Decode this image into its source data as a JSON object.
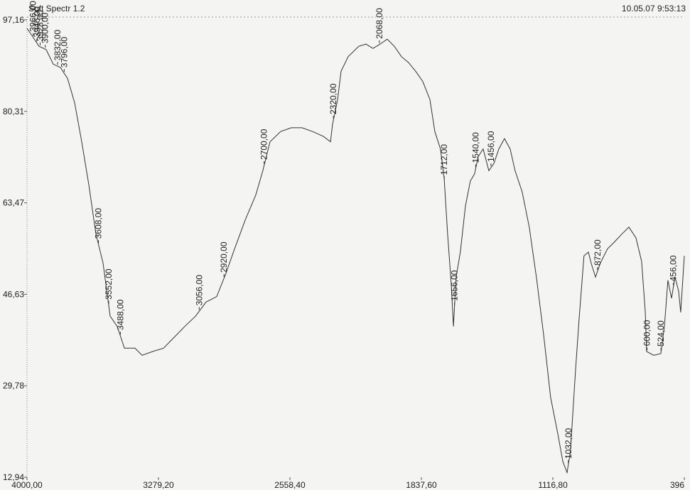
{
  "chart_data": {
    "type": "line",
    "title": "Soft Spectr 1.2",
    "subtitle": "10.05.07  9:53:13",
    "xlim": [
      4000,
      396
    ],
    "ylim": [
      12.94,
      97.16
    ],
    "xticks": [
      {
        "value": 4000,
        "label": "4000,00"
      },
      {
        "value": 3279.2,
        "label": "3279,20"
      },
      {
        "value": 2558.4,
        "label": "2558,40"
      },
      {
        "value": 1837.6,
        "label": "1837,60"
      },
      {
        "value": 1116.8,
        "label": "1116,80"
      },
      396
    ],
    "yticks": [
      {
        "value": 97.16,
        "label": "97,16"
      },
      {
        "value": 80.31,
        "label": "80,31"
      },
      {
        "value": 63.47,
        "label": "63,47"
      },
      {
        "value": 46.63,
        "label": "46,63"
      },
      {
        "value": 29.78,
        "label": "29,78"
      },
      {
        "value": 12.94,
        "label": "12,94"
      }
    ],
    "series": [
      {
        "color": "#333333",
        "x": [
          4000,
          3973,
          3934,
          3895,
          3856,
          3817,
          3778,
          3739,
          3700,
          3661,
          3622,
          3583,
          3544,
          3505,
          3466,
          3408,
          3369,
          3310,
          3252,
          3193,
          3135,
          3076,
          3018,
          2960,
          2909,
          2862,
          2804,
          2746,
          2707,
          2668,
          2609,
          2551,
          2492,
          2434,
          2375,
          2336,
          2325,
          2297,
          2278,
          2239,
          2181,
          2142,
          2103,
          2064,
          2025,
          1986,
          1947,
          1908,
          1869,
          1830,
          1791,
          1764,
          1733,
          1713,
          1694,
          1674,
          1662,
          1647,
          1624,
          1596,
          1569,
          1546,
          1526,
          1499,
          1468,
          1440,
          1413,
          1382,
          1351,
          1324,
          1285,
          1246,
          1207,
          1168,
          1129,
          1090,
          1062,
          1039,
          1020,
          992,
          973,
          946,
          922,
          907,
          883,
          856,
          817,
          778,
          739,
          700,
          661,
          630,
          610,
          603,
          564,
          525,
          505,
          486,
          466,
          447,
          427,
          416,
          396
        ],
        "values": [
          95.6,
          94.3,
          92.3,
          91.7,
          89.0,
          88.4,
          86.4,
          81.9,
          74.7,
          66.8,
          57.7,
          52.4,
          42.6,
          40.7,
          36.7,
          36.7,
          35.4,
          36.1,
          36.7,
          38.7,
          40.7,
          42.6,
          45.2,
          46.2,
          50.5,
          55.0,
          60.3,
          64.9,
          69.4,
          74.7,
          76.6,
          77.3,
          77.3,
          76.6,
          75.7,
          74.7,
          77.9,
          82.5,
          87.7,
          90.4,
          92.3,
          92.7,
          91.9,
          92.7,
          93.6,
          92.3,
          90.4,
          89.3,
          87.7,
          85.8,
          82.5,
          76.6,
          73.4,
          68.1,
          57.7,
          48.5,
          40.7,
          49.8,
          54.4,
          62.9,
          67.5,
          68.8,
          72.0,
          73.4,
          69.4,
          70.7,
          73.4,
          75.3,
          73.4,
          69.4,
          65.5,
          59.0,
          49.8,
          39.3,
          27.6,
          21.0,
          15.8,
          13.8,
          17.8,
          32.8,
          42.0,
          53.7,
          54.4,
          52.4,
          49.8,
          52.4,
          55.0,
          56.3,
          57.7,
          59.0,
          57.0,
          52.7,
          43.3,
          36.1,
          35.4,
          35.7,
          40.7,
          49.2,
          45.9,
          49.8,
          47.2,
          43.3,
          53.7
        ]
      }
    ],
    "peaks": [
      {
        "x": 3966,
        "label": "3966,00"
      },
      {
        "x": 3946,
        "label": "3946,00"
      },
      {
        "x": 3928,
        "label": "3928,00"
      },
      {
        "x": 3900,
        "label": "3900,00"
      },
      {
        "x": 3832,
        "label": "3832,00"
      },
      {
        "x": 3796,
        "label": "3796,00"
      },
      {
        "x": 3608,
        "label": "3608,00"
      },
      {
        "x": 3552,
        "label": "3552,00"
      },
      {
        "x": 3488,
        "label": "3488,00"
      },
      {
        "x": 3056,
        "label": "3056,00"
      },
      {
        "x": 2920,
        "label": "2920,00"
      },
      {
        "x": 2700,
        "label": "2700,00"
      },
      {
        "x": 2320,
        "label": "2320,00"
      },
      {
        "x": 2068,
        "label": "2068,00"
      },
      {
        "x": 1712,
        "label": "1712,00"
      },
      {
        "x": 1656,
        "label": "1656,00"
      },
      {
        "x": 1540,
        "label": "1540,00"
      },
      {
        "x": 1456,
        "label": "1456,00"
      },
      {
        "x": 1032,
        "label": "1032,00"
      },
      {
        "x": 872,
        "label": "872,00"
      },
      {
        "x": 600,
        "label": "600,00"
      },
      {
        "x": 524,
        "label": "524,00"
      },
      {
        "x": 456,
        "label": "456,00"
      }
    ]
  }
}
